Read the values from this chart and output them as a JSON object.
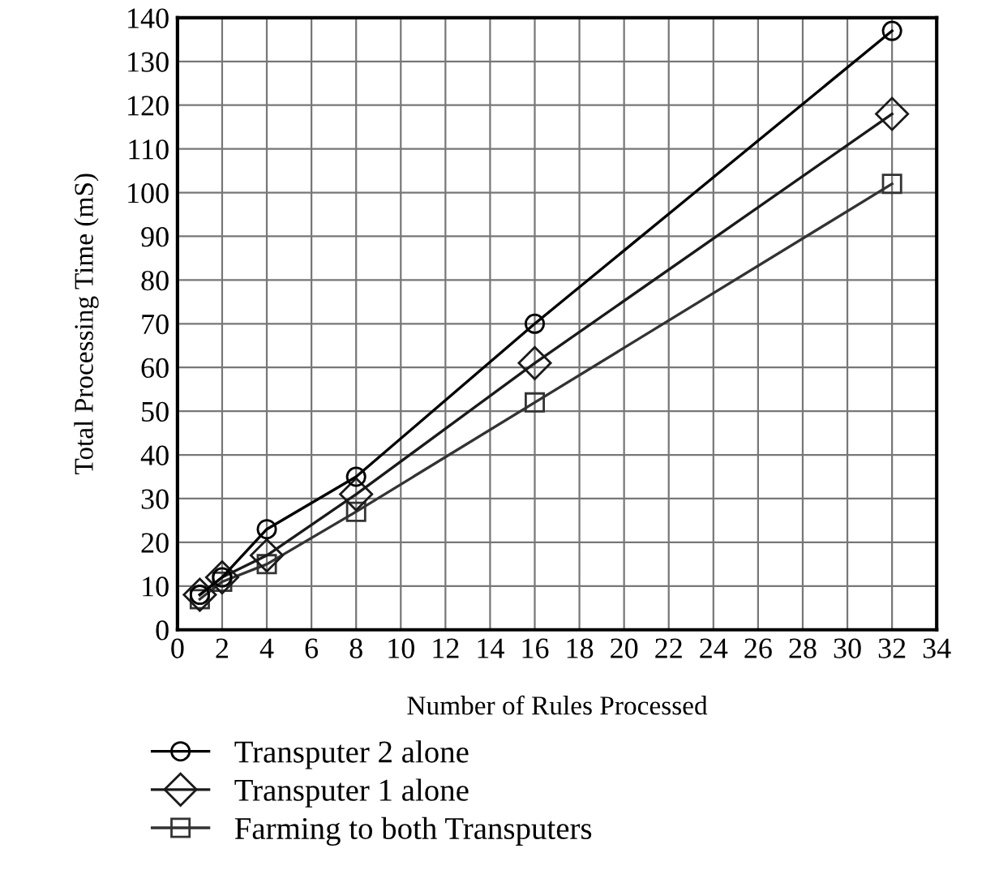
{
  "chart_data": {
    "type": "line",
    "xlabel": "Number of Rules Processed",
    "ylabel": "Total Processing Time (mS)",
    "x": [
      1,
      2,
      4,
      8,
      16,
      32
    ],
    "series": [
      {
        "name": "Transputer 2 alone",
        "color": "#000000",
        "marker": "circle",
        "values": [
          8,
          12,
          23,
          35,
          70,
          137
        ]
      },
      {
        "name": "Transputer 1 alone",
        "color": "#1a1a1a",
        "marker": "diamond",
        "values": [
          8,
          12,
          17,
          31,
          61,
          118
        ]
      },
      {
        "name": "Farming to both Transputers",
        "color": "#333333",
        "marker": "square",
        "values": [
          7,
          11,
          15,
          27,
          52,
          102
        ]
      }
    ],
    "xlim": [
      0,
      34
    ],
    "xticks": [
      0,
      2,
      4,
      6,
      8,
      10,
      12,
      14,
      16,
      18,
      20,
      22,
      24,
      26,
      28,
      30,
      32,
      34
    ],
    "ylim": [
      0,
      140
    ],
    "yticks": [
      0,
      10,
      20,
      30,
      40,
      50,
      60,
      70,
      80,
      90,
      100,
      110,
      120,
      130,
      140
    ],
    "grid": true,
    "legend": "bottom",
    "line_style": "solid"
  }
}
